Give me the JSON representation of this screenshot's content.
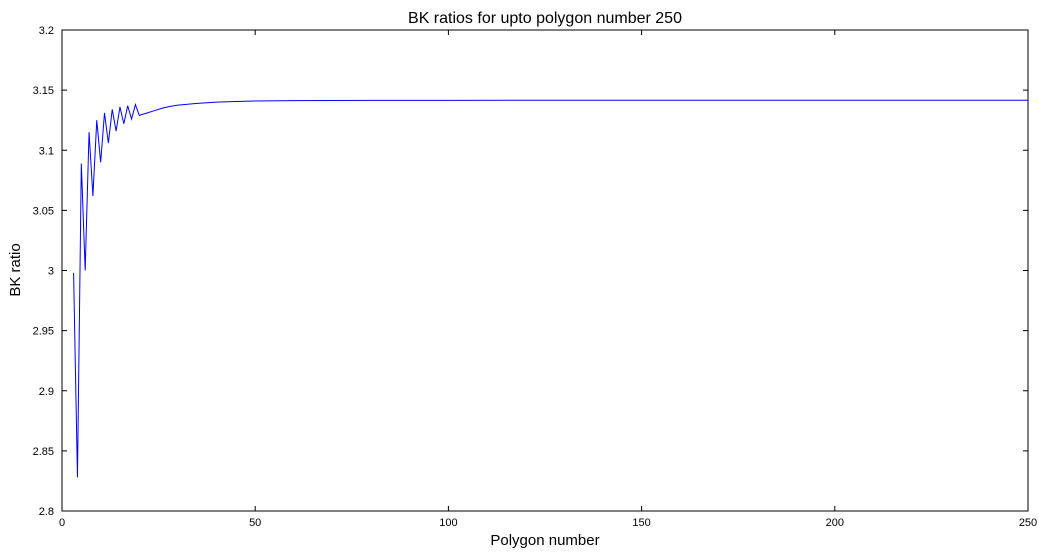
{
  "chart_data": {
    "type": "line",
    "title": "BK ratios for upto polygon number 250",
    "xlabel": "Polygon number",
    "ylabel": "BK ratio",
    "xlim": [
      0,
      250
    ],
    "ylim": [
      2.8,
      3.2
    ],
    "xticks": [
      "0",
      "50",
      "100",
      "150",
      "200",
      "250"
    ],
    "yticks": [
      "2.8",
      "2.85",
      "2.9",
      "2.95",
      "3",
      "3.05",
      "3.1",
      "3.15",
      "3.2"
    ],
    "grid": false,
    "series": [
      {
        "color": "#0000ff",
        "x": [
          3,
          4,
          5,
          6,
          7,
          8,
          9,
          10,
          11,
          12,
          13,
          14,
          15,
          16,
          17,
          18,
          19,
          20,
          22,
          24,
          26,
          28,
          30,
          35,
          40,
          45,
          50,
          60,
          70,
          80,
          100,
          120,
          150,
          200,
          250
        ],
        "y": [
          2.998,
          2.828,
          3.089,
          3.0,
          3.115,
          3.062,
          3.125,
          3.09,
          3.131,
          3.106,
          3.134,
          3.116,
          3.136,
          3.122,
          3.137,
          3.126,
          3.138,
          3.129,
          3.131,
          3.133,
          3.135,
          3.1365,
          3.1375,
          3.139,
          3.14,
          3.1405,
          3.141,
          3.1413,
          3.1414,
          3.1415,
          3.1415,
          3.1416,
          3.1416,
          3.1416,
          3.1416
        ]
      }
    ]
  }
}
